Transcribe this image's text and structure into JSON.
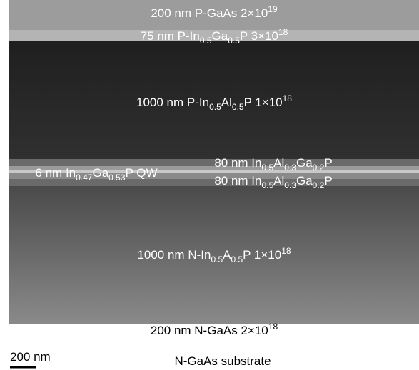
{
  "labels": [
    {
      "parts": [
        {
          "text": "200 nm P-GaAs 2×10"
        },
        {
          "text": "19",
          "style": "sup"
        }
      ]
    },
    {
      "parts": [
        {
          "text": "75 nm P-In"
        },
        {
          "text": "0.5",
          "style": "sub"
        },
        {
          "text": "Ga"
        },
        {
          "text": "0.5",
          "style": "sub"
        },
        {
          "text": "P 3×10"
        },
        {
          "text": "18",
          "style": "sup"
        }
      ]
    },
    {
      "parts": [
        {
          "text": "1000 nm P-In"
        },
        {
          "text": "0.5",
          "style": "sub"
        },
        {
          "text": "Al"
        },
        {
          "text": "0.5",
          "style": "sub"
        },
        {
          "text": "P 1×10"
        },
        {
          "text": "18",
          "style": "sup"
        }
      ]
    },
    {
      "parts": [
        {
          "text": "80 nm In"
        },
        {
          "text": "0.5",
          "style": "sub"
        },
        {
          "text": "Al"
        },
        {
          "text": "0.3",
          "style": "sub"
        },
        {
          "text": "Ga"
        },
        {
          "text": "0.2",
          "style": "sub"
        },
        {
          "text": "P"
        }
      ]
    },
    {
      "parts": [
        {
          "text": "6 nm In"
        },
        {
          "text": "0.47",
          "style": "sub"
        },
        {
          "text": "Ga"
        },
        {
          "text": "0.53",
          "style": "sub"
        },
        {
          "text": "P QW"
        }
      ]
    },
    {
      "parts": [
        {
          "text": "80 nm In"
        },
        {
          "text": "0.5",
          "style": "sub"
        },
        {
          "text": "Al"
        },
        {
          "text": "0.3",
          "style": "sub"
        },
        {
          "text": "Ga"
        },
        {
          "text": "0.2",
          "style": "sub"
        },
        {
          "text": "P"
        }
      ]
    },
    {
      "parts": [
        {
          "text": "1000 nm N-In"
        },
        {
          "text": "0.5",
          "style": "sub"
        },
        {
          "text": "A"
        },
        {
          "text": "0.5",
          "style": "sub"
        },
        {
          "text": "P 1×10"
        },
        {
          "text": "18",
          "style": "sup"
        }
      ]
    },
    {
      "parts": [
        {
          "text": "200 nm N-GaAs 2×10"
        },
        {
          "text": "18",
          "style": "sup"
        }
      ]
    },
    {
      "parts": [
        {
          "text": "N-GaAs substrate"
        }
      ]
    },
    {
      "parts": [
        {
          "text": "200 nm"
        }
      ]
    }
  ]
}
